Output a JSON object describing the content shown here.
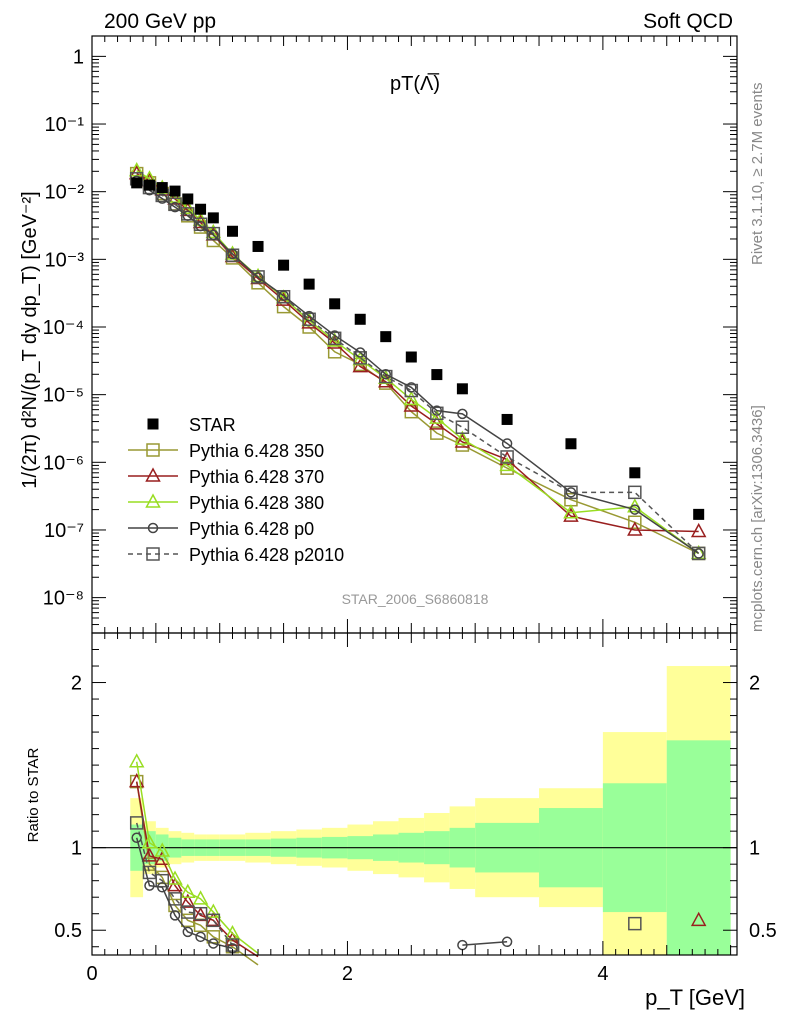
{
  "header": {
    "left": "200 GeV pp",
    "right": "Soft QCD"
  },
  "side": {
    "rivet": "Rivet 3.1.10, ≥ 2.7M events",
    "mcplots": "mcplots.cern.ch [arXiv:1306.3436]"
  },
  "chart_data": [
    {
      "type": "scatter",
      "title": "pT(Λ̅)",
      "watermark": "STAR_2006_S6860818",
      "ylabel": "1/(2π) d²N/(p_T dy dp_T) [GeV⁻²]",
      "ylog": true,
      "ylim": [
        3e-09,
        2
      ],
      "xlim": [
        0,
        5.05
      ],
      "yticks": [
        {
          "v": 1,
          "label": "1"
        },
        {
          "v": 0.1,
          "label": "10⁻¹"
        },
        {
          "v": 0.01,
          "label": "10⁻²"
        },
        {
          "v": 0.001,
          "label": "10⁻³"
        },
        {
          "v": 0.0001,
          "label": "10⁻⁴"
        },
        {
          "v": 1e-05,
          "label": "10⁻⁵"
        },
        {
          "v": 1e-06,
          "label": "10⁻⁶"
        },
        {
          "v": 1e-07,
          "label": "10⁻⁷"
        },
        {
          "v": 1e-08,
          "label": "10⁻⁸"
        }
      ],
      "legend_position": "lower-left",
      "series": [
        {
          "name": "STAR",
          "color": "#000000",
          "marker": "filled-square",
          "line": "none",
          "x": [
            0.35,
            0.45,
            0.55,
            0.65,
            0.75,
            0.85,
            0.95,
            1.1,
            1.3,
            1.5,
            1.7,
            1.9,
            2.1,
            2.3,
            2.5,
            2.7,
            2.9,
            3.25,
            3.75,
            4.25,
            4.75
          ],
          "y": [
            0.0135,
            0.0125,
            0.0115,
            0.0102,
            0.0078,
            0.0055,
            0.0041,
            0.0026,
            0.00155,
            0.00082,
            0.00043,
            0.00022,
            0.00013,
            7.2e-05,
            3.6e-05,
            1.98e-05,
            1.22e-05,
            4.3e-06,
            1.88e-06,
            7e-07,
            1.7e-07
          ]
        },
        {
          "name": "Pythia 6.428 350",
          "color": "#999933",
          "marker": "open-square",
          "line": "solid",
          "x": [
            0.35,
            0.45,
            0.55,
            0.65,
            0.75,
            0.85,
            0.95,
            1.1,
            1.3,
            1.5,
            1.7,
            1.9,
            2.1,
            2.3,
            2.5,
            2.7,
            2.9,
            3.25,
            3.75,
            4.25,
            4.75
          ],
          "y": [
            0.0185,
            0.0135,
            0.0094,
            0.0066,
            0.0044,
            0.003,
            0.0019,
            0.00105,
            0.00045,
            0.0002,
            0.0001,
            4.3e-05,
            2.8e-05,
            1.48e-05,
            5.6e-06,
            2.7e-06,
            1.8e-06,
            8.2e-07,
            2.8e-07,
            1.3e-07,
            4.5e-08
          ]
        },
        {
          "name": "Pythia 6.428 370",
          "color": "#991f1f",
          "marker": "open-triangle",
          "line": "solid",
          "x": [
            0.35,
            0.45,
            0.55,
            0.65,
            0.75,
            0.85,
            0.95,
            1.1,
            1.3,
            1.5,
            1.7,
            1.9,
            2.1,
            2.3,
            2.5,
            2.7,
            2.9,
            3.25,
            3.75,
            4.25,
            4.75
          ],
          "y": [
            0.0185,
            0.0145,
            0.0106,
            0.0078,
            0.0053,
            0.0035,
            0.0023,
            0.0011,
            0.00052,
            0.00025,
            0.000115,
            5.8e-05,
            2.6e-05,
            1.55e-05,
            6.8e-06,
            3.7e-06,
            2e-06,
            1.1e-06,
            1.6e-07,
            1e-07,
            9.5e-08
          ]
        },
        {
          "name": "Pythia 6.428 380",
          "color": "#99dd22",
          "marker": "open-triangle",
          "line": "solid",
          "x": [
            0.35,
            0.45,
            0.55,
            0.65,
            0.75,
            0.85,
            0.95,
            1.1,
            1.3,
            1.5,
            1.7,
            1.9,
            2.1,
            2.3,
            2.5,
            2.7,
            2.9,
            3.25,
            3.75,
            4.25,
            4.75
          ],
          "y": [
            0.0205,
            0.0155,
            0.0113,
            0.0083,
            0.0057,
            0.0038,
            0.0025,
            0.0012,
            0.00056,
            0.00027,
            0.000125,
            6.2e-05,
            3.3e-05,
            1.75e-05,
            8.5e-06,
            4.5e-06,
            2.2e-06,
            9e-07,
            1.8e-07,
            2.2e-07,
            4.5e-08
          ]
        },
        {
          "name": "Pythia 6.428 p0",
          "color": "#444444",
          "marker": "open-circle",
          "line": "solid",
          "x": [
            0.35,
            0.45,
            0.55,
            0.65,
            0.75,
            0.85,
            0.95,
            1.1,
            1.3,
            1.5,
            1.7,
            1.9,
            2.1,
            2.3,
            2.5,
            2.7,
            2.9,
            3.25,
            3.75,
            4.25,
            4.75
          ],
          "y": [
            0.0145,
            0.0105,
            0.0079,
            0.0059,
            0.0044,
            0.0031,
            0.0023,
            0.0012,
            0.00054,
            0.00029,
            0.000145,
            7.5e-05,
            4.2e-05,
            2e-05,
            1.28e-05,
            5.8e-06,
            5.2e-06,
            1.9e-06,
            3.6e-07,
            2e-07,
            4.5e-08
          ]
        },
        {
          "name": "Pythia 6.428 p2010",
          "color": "#555555",
          "marker": "open-square",
          "line": "dashed",
          "x": [
            0.35,
            0.45,
            0.55,
            0.65,
            0.75,
            0.85,
            0.95,
            1.1,
            1.3,
            1.5,
            1.7,
            1.9,
            2.1,
            2.3,
            2.5,
            2.7,
            2.9,
            3.25,
            3.75,
            4.25,
            4.75
          ],
          "y": [
            0.0155,
            0.0115,
            0.0088,
            0.0065,
            0.0047,
            0.0033,
            0.0024,
            0.00115,
            0.00055,
            0.00028,
            0.00013,
            6.8e-05,
            3.5e-05,
            1.85e-05,
            1.15e-05,
            5.3e-06,
            3.3e-06,
            1.2e-06,
            3.6e-07,
            3.6e-07,
            4.5e-08
          ]
        }
      ]
    },
    {
      "type": "line",
      "ylabel": "Ratio to STAR",
      "xlabel": "p_T [GeV]",
      "ylim": [
        0.35,
        2.3
      ],
      "xlim": [
        0,
        5.05
      ],
      "xticks": [
        0,
        2,
        4
      ],
      "yticks": [
        0.5,
        1,
        2
      ],
      "reference_line": 1,
      "bands": {
        "xedges": [
          0.3,
          0.4,
          0.5,
          0.6,
          0.7,
          0.8,
          0.9,
          1.0,
          1.2,
          1.4,
          1.6,
          1.8,
          2.0,
          2.2,
          2.4,
          2.6,
          2.8,
          3.0,
          3.5,
          4.0,
          4.5,
          5.0
        ],
        "inner": [
          0.14,
          0.1,
          0.08,
          0.06,
          0.05,
          0.05,
          0.05,
          0.05,
          0.05,
          0.055,
          0.06,
          0.065,
          0.07,
          0.08,
          0.09,
          0.1,
          0.12,
          0.15,
          0.24,
          0.39,
          0.65
        ],
        "outer": [
          0.3,
          0.16,
          0.12,
          0.1,
          0.09,
          0.08,
          0.08,
          0.08,
          0.09,
          0.1,
          0.11,
          0.12,
          0.14,
          0.16,
          0.18,
          0.21,
          0.25,
          0.3,
          0.36,
          0.7,
          1.1
        ],
        "inner_color": "#99ff99",
        "outer_color": "#ffff99"
      },
      "series": [
        {
          "name": "Pythia 6.428 350",
          "color": "#999933",
          "x": [
            0.35,
            0.45,
            0.55,
            0.65,
            0.75,
            0.85,
            0.95,
            1.1,
            1.3
          ],
          "y": [
            1.4,
            0.9,
            0.82,
            0.65,
            0.56,
            0.53,
            0.46,
            0.4,
            0.29
          ]
        },
        {
          "name": "Pythia 6.428 370",
          "color": "#991f1f",
          "x": [
            0.35,
            0.45,
            0.55,
            0.65,
            0.75,
            0.85,
            0.95,
            1.1,
            1.3,
            4.75
          ],
          "y": [
            1.4,
            0.95,
            0.93,
            0.77,
            0.67,
            0.59,
            0.56,
            0.44,
            0.34,
            0.56
          ]
        },
        {
          "name": "Pythia 6.428 380",
          "color": "#99dd22",
          "x": [
            0.35,
            0.45,
            0.55,
            0.65,
            0.75,
            0.85,
            0.95,
            1.1,
            1.3
          ],
          "y": [
            1.52,
            1.03,
            0.98,
            0.81,
            0.73,
            0.69,
            0.61,
            0.48,
            0.36
          ]
        },
        {
          "name": "Pythia 6.428 p0",
          "color": "#444444",
          "x": [
            0.35,
            0.45,
            0.55,
            0.65,
            0.75,
            0.85,
            0.95,
            1.1,
            2.9,
            3.25
          ],
          "y": [
            1.06,
            0.77,
            0.76,
            0.59,
            0.49,
            0.46,
            0.42,
            0.39,
            0.41,
            0.43
          ]
        },
        {
          "name": "Pythia 6.428 p2010",
          "color": "#555555",
          "x": [
            0.35,
            0.45,
            0.55,
            0.65,
            0.75,
            0.85,
            0.95,
            1.1,
            4.25
          ],
          "y": [
            1.15,
            0.85,
            0.8,
            0.69,
            0.61,
            0.6,
            0.56,
            0.41,
            0.54
          ]
        }
      ]
    }
  ]
}
